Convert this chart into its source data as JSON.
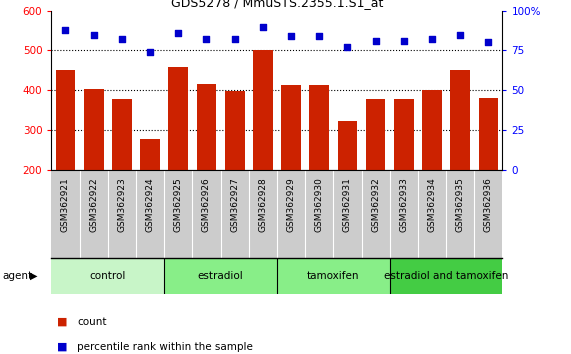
{
  "title": "GDS5278 / MmuSTS.2355.1.S1_at",
  "categories": [
    "GSM362921",
    "GSM362922",
    "GSM362923",
    "GSM362924",
    "GSM362925",
    "GSM362926",
    "GSM362927",
    "GSM362928",
    "GSM362929",
    "GSM362930",
    "GSM362931",
    "GSM362932",
    "GSM362933",
    "GSM362934",
    "GSM362935",
    "GSM362936"
  ],
  "bar_values": [
    452,
    403,
    378,
    278,
    458,
    415,
    398,
    500,
    412,
    412,
    322,
    378,
    378,
    400,
    452,
    380
  ],
  "scatter_values": [
    88,
    85,
    82,
    74,
    86,
    82,
    82,
    90,
    84,
    84,
    77,
    81,
    81,
    82,
    85,
    80
  ],
  "bar_color": "#cc2200",
  "scatter_color": "#0000cc",
  "ylim_left": [
    200,
    600
  ],
  "ylim_right": [
    0,
    100
  ],
  "yticks_left": [
    200,
    300,
    400,
    500,
    600
  ],
  "yticks_right": [
    0,
    25,
    50,
    75,
    100
  ],
  "groups": [
    {
      "label": "control",
      "start": 0,
      "end": 4,
      "color": "#c8f5c8"
    },
    {
      "label": "estradiol",
      "start": 4,
      "end": 8,
      "color": "#88ee88"
    },
    {
      "label": "tamoxifen",
      "start": 8,
      "end": 12,
      "color": "#88ee88"
    },
    {
      "label": "estradiol and tamoxifen",
      "start": 12,
      "end": 16,
      "color": "#44cc44"
    }
  ],
  "legend_count_label": "count",
  "legend_pct_label": "percentile rank within the sample",
  "dotted_lines": [
    300,
    400,
    500
  ],
  "tick_bg_color": "#cccccc"
}
